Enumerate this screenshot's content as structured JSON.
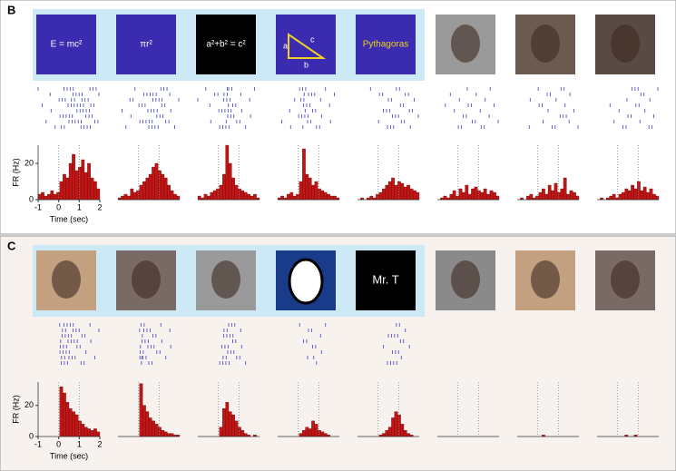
{
  "chart_data": [
    {
      "type": "histogram",
      "panel": "B",
      "stimuli": [
        "E = mc²",
        "πr²",
        "a²+b² = c²",
        null,
        "Pythagoras",
        null,
        null,
        null
      ],
      "triangle_labels": [
        "a",
        "b",
        "c"
      ],
      "xlabel": "Time (sec)",
      "ylabel": "FR (Hz)",
      "xlim": [
        -1,
        2
      ],
      "xticks": [
        -1,
        0,
        1,
        2
      ],
      "ylim": [
        0,
        30
      ],
      "yticks": [
        0,
        20
      ],
      "color": "#c01515",
      "bins": [
        -1,
        -0.85,
        -0.7,
        -0.55,
        -0.4,
        -0.25,
        -0.1,
        0.05,
        0.2,
        0.35,
        0.5,
        0.65,
        0.8,
        0.95,
        1.1,
        1.25,
        1.4,
        1.55,
        1.7,
        1.85,
        2
      ],
      "series": [
        {
          "values": [
            3,
            4,
            2,
            3,
            5,
            3,
            4,
            10,
            14,
            12,
            20,
            25,
            16,
            18,
            22,
            15,
            20,
            12,
            10,
            6
          ]
        },
        {
          "values": [
            1,
            2,
            3,
            2,
            6,
            4,
            5,
            8,
            10,
            12,
            14,
            18,
            20,
            16,
            14,
            12,
            8,
            5,
            3,
            2
          ]
        },
        {
          "values": [
            2,
            1,
            3,
            2,
            4,
            5,
            6,
            8,
            14,
            30,
            20,
            12,
            8,
            6,
            5,
            4,
            3,
            2,
            3,
            1
          ]
        },
        {
          "values": [
            1,
            2,
            1,
            3,
            4,
            2,
            3,
            10,
            28,
            14,
            12,
            8,
            10,
            6,
            5,
            4,
            3,
            2,
            2,
            1
          ]
        },
        {
          "values": [
            0,
            1,
            0,
            1,
            2,
            1,
            3,
            4,
            6,
            8,
            10,
            12,
            8,
            10,
            9,
            7,
            8,
            6,
            5,
            4
          ]
        },
        {
          "values": [
            0,
            1,
            2,
            1,
            3,
            5,
            2,
            6,
            4,
            8,
            3,
            6,
            7,
            5,
            4,
            6,
            3,
            5,
            4,
            2
          ]
        },
        {
          "values": [
            0,
            1,
            0,
            2,
            3,
            1,
            2,
            4,
            6,
            3,
            8,
            5,
            9,
            4,
            6,
            12,
            3,
            5,
            4,
            2
          ]
        },
        {
          "values": [
            0,
            1,
            0,
            1,
            2,
            3,
            1,
            3,
            4,
            6,
            5,
            8,
            6,
            10,
            5,
            7,
            4,
            6,
            3,
            2
          ]
        }
      ]
    },
    {
      "type": "histogram",
      "panel": "C",
      "stimuli": [
        null,
        null,
        null,
        null,
        "Mr. T",
        null,
        null,
        null
      ],
      "xlabel": "Time (sec)",
      "ylabel": "FR (Hz)",
      "xlim": [
        -1,
        2
      ],
      "xticks": [
        -1,
        0,
        1,
        2
      ],
      "ylim": [
        0,
        35
      ],
      "yticks": [
        0,
        20
      ],
      "color": "#c01515",
      "bins": [
        -1,
        -0.85,
        -0.7,
        -0.55,
        -0.4,
        -0.25,
        -0.1,
        0.05,
        0.2,
        0.35,
        0.5,
        0.65,
        0.8,
        0.95,
        1.1,
        1.25,
        1.4,
        1.55,
        1.7,
        1.85,
        2
      ],
      "series": [
        {
          "values": [
            0,
            0,
            0,
            0,
            0,
            0,
            0,
            32,
            28,
            22,
            18,
            16,
            14,
            10,
            8,
            6,
            5,
            4,
            5,
            3
          ]
        },
        {
          "values": [
            0,
            0,
            0,
            0,
            0,
            0,
            0,
            34,
            20,
            16,
            12,
            10,
            8,
            6,
            4,
            3,
            2,
            2,
            1,
            1
          ]
        },
        {
          "values": [
            0,
            0,
            0,
            0,
            0,
            0,
            0,
            6,
            18,
            22,
            16,
            14,
            10,
            6,
            4,
            2,
            1,
            0,
            1,
            0
          ]
        },
        {
          "values": [
            0,
            0,
            0,
            0,
            0,
            0,
            0,
            2,
            4,
            6,
            5,
            10,
            8,
            4,
            3,
            2,
            1,
            0,
            0,
            0
          ]
        },
        {
          "values": [
            0,
            0,
            0,
            0,
            0,
            0,
            0,
            1,
            2,
            4,
            6,
            12,
            16,
            14,
            8,
            4,
            2,
            1,
            0,
            0
          ]
        },
        {
          "values": [
            0,
            0,
            0,
            0,
            0,
            0,
            0,
            0,
            0,
            0,
            0,
            0,
            0,
            0,
            0,
            0,
            0,
            0,
            0,
            0
          ]
        },
        {
          "values": [
            0,
            0,
            0,
            0,
            0,
            0,
            0,
            0,
            1,
            0,
            0,
            0,
            0,
            0,
            0,
            0,
            0,
            0,
            0,
            0
          ]
        },
        {
          "values": [
            0,
            0,
            0,
            0,
            0,
            0,
            0,
            0,
            0,
            1,
            0,
            0,
            1,
            0,
            0,
            0,
            0,
            0,
            0,
            0
          ]
        }
      ]
    }
  ]
}
